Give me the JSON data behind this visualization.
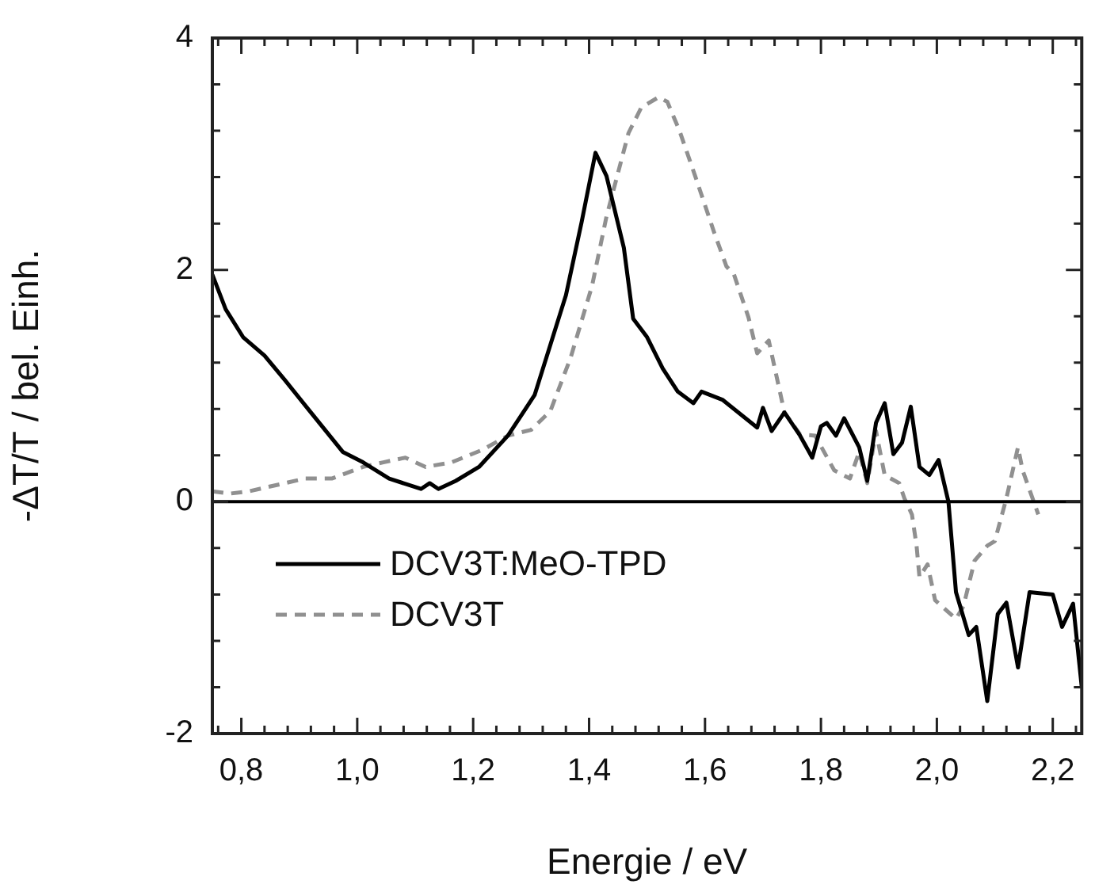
{
  "chart_data": {
    "type": "line",
    "xlabel": "Energie / eV",
    "ylabel": "-ΔT/T / bel. Einh.",
    "xlim": [
      0.75,
      2.25
    ],
    "ylim": [
      -2,
      4
    ],
    "xticks": [
      {
        "value": 0.76,
        "label": null
      },
      {
        "value": 0.8,
        "label": "0,8"
      },
      {
        "value": 0.84,
        "label": null
      },
      {
        "value": 0.88,
        "label": null
      },
      {
        "value": 0.92,
        "label": null
      },
      {
        "value": 0.96,
        "label": null
      },
      {
        "value": 1.0,
        "label": "1,0"
      },
      {
        "value": 1.04,
        "label": null
      },
      {
        "value": 1.08,
        "label": null
      },
      {
        "value": 1.12,
        "label": null
      },
      {
        "value": 1.16,
        "label": null
      },
      {
        "value": 1.2,
        "label": "1,2"
      },
      {
        "value": 1.24,
        "label": null
      },
      {
        "value": 1.28,
        "label": null
      },
      {
        "value": 1.32,
        "label": null
      },
      {
        "value": 1.36,
        "label": null
      },
      {
        "value": 1.4,
        "label": "1,4"
      },
      {
        "value": 1.44,
        "label": null
      },
      {
        "value": 1.48,
        "label": null
      },
      {
        "value": 1.52,
        "label": null
      },
      {
        "value": 1.56,
        "label": null
      },
      {
        "value": 1.6,
        "label": "1,6"
      },
      {
        "value": 1.64,
        "label": null
      },
      {
        "value": 1.68,
        "label": null
      },
      {
        "value": 1.72,
        "label": null
      },
      {
        "value": 1.76,
        "label": null
      },
      {
        "value": 1.8,
        "label": "1,8"
      },
      {
        "value": 1.84,
        "label": null
      },
      {
        "value": 1.88,
        "label": null
      },
      {
        "value": 1.92,
        "label": null
      },
      {
        "value": 1.96,
        "label": null
      },
      {
        "value": 2.0,
        "label": "2,0"
      },
      {
        "value": 2.04,
        "label": null
      },
      {
        "value": 2.08,
        "label": null
      },
      {
        "value": 2.12,
        "label": null
      },
      {
        "value": 2.16,
        "label": null
      },
      {
        "value": 2.2,
        "label": "2,2"
      },
      {
        "value": 2.24,
        "label": null
      }
    ],
    "yticks": [
      -2,
      {
        "value": -1.6,
        "label": null
      },
      {
        "value": -1.2,
        "label": null
      },
      {
        "value": -0.8,
        "label": null
      },
      {
        "value": -0.4,
        "label": null
      },
      0,
      {
        "value": 0.4,
        "label": null
      },
      {
        "value": 0.8,
        "label": null
      },
      {
        "value": 1.2,
        "label": null
      },
      {
        "value": 1.6,
        "label": null
      },
      2,
      {
        "value": 2.4,
        "label": null
      },
      {
        "value": 2.8,
        "label": null
      },
      {
        "value": 3.2,
        "label": null
      },
      {
        "value": 3.6,
        "label": null
      },
      4
    ],
    "ref_lines": [
      {
        "axis": "y",
        "value": 0,
        "label": null,
        "color": "#000000"
      }
    ],
    "legend": "bottom left",
    "grid": false,
    "marker": "none",
    "series": [
      {
        "name": "DCV3T:MeO-TPD",
        "color": "#000000",
        "line_style": "solid",
        "x": [
          0.75,
          0.773,
          0.803,
          0.84,
          0.875,
          0.92,
          0.975,
          1.01,
          1.055,
          1.11,
          1.125,
          1.14,
          1.17,
          1.21,
          1.26,
          1.306,
          1.36,
          1.387,
          1.411,
          1.43,
          1.46,
          1.476,
          1.5,
          1.527,
          1.553,
          1.58,
          1.594,
          1.63,
          1.69,
          1.7,
          1.715,
          1.737,
          1.764,
          1.785,
          1.8,
          1.81,
          1.826,
          1.84,
          1.866,
          1.88,
          1.895,
          1.91,
          1.925,
          1.94,
          1.955,
          1.97,
          1.987,
          2.003,
          2.02,
          2.033,
          2.055,
          2.068,
          2.087,
          2.105,
          2.12,
          2.14,
          2.16,
          2.2,
          2.216,
          2.235,
          2.25
        ],
        "values": [
          1.96,
          1.66,
          1.42,
          1.26,
          1.05,
          0.77,
          0.43,
          0.34,
          0.2,
          0.11,
          0.16,
          0.11,
          0.18,
          0.3,
          0.57,
          0.92,
          1.78,
          2.41,
          3.01,
          2.81,
          2.19,
          1.58,
          1.42,
          1.15,
          0.95,
          0.85,
          0.95,
          0.88,
          0.64,
          0.81,
          0.61,
          0.77,
          0.57,
          0.38,
          0.65,
          0.68,
          0.57,
          0.72,
          0.47,
          0.18,
          0.68,
          0.85,
          0.41,
          0.51,
          0.82,
          0.3,
          0.23,
          0.36,
          0,
          -0.78,
          -1.15,
          -1.08,
          -1.72,
          -0.97,
          -0.87,
          -1.43,
          -0.78,
          -0.8,
          -1.08,
          -0.88,
          -1.6
        ]
      },
      {
        "name": "DCV3T",
        "color": "#909090",
        "line_style": "dashed",
        "x": [
          0.75,
          0.78,
          0.813,
          0.875,
          0.91,
          0.956,
          1.01,
          1.045,
          1.083,
          1.118,
          1.163,
          1.217,
          1.26,
          1.3,
          1.333,
          1.368,
          1.405,
          1.43,
          1.468,
          1.49,
          1.52,
          1.535,
          1.556,
          1.583,
          1.616,
          1.637,
          1.65,
          1.675,
          1.69,
          1.71,
          1.737,
          1.764,
          1.79,
          1.823,
          1.85,
          1.866,
          1.88,
          1.895,
          1.91,
          1.935,
          1.944,
          1.957,
          1.965,
          1.97,
          1.984,
          1.997,
          2.033,
          2.046,
          2.065,
          2.087,
          2.1,
          2.12,
          2.14,
          2.148,
          2.175
        ],
        "values": [
          0.09,
          0.07,
          0.09,
          0.16,
          0.2,
          0.2,
          0.3,
          0.34,
          0.38,
          0.3,
          0.34,
          0.45,
          0.57,
          0.62,
          0.78,
          1.24,
          1.86,
          2.46,
          3.18,
          3.4,
          3.49,
          3.45,
          3.2,
          2.81,
          2.32,
          2.03,
          1.96,
          1.59,
          1.28,
          1.39,
          0.77,
          0.58,
          0.57,
          0.27,
          0.2,
          0.43,
          0.16,
          0.61,
          0.23,
          0.16,
          0.03,
          -0.11,
          -0.38,
          -0.65,
          -0.54,
          -0.85,
          -1.01,
          -0.9,
          -0.51,
          -0.38,
          -0.34,
          0.03,
          0.47,
          0.27,
          -0.11
        ]
      }
    ]
  }
}
